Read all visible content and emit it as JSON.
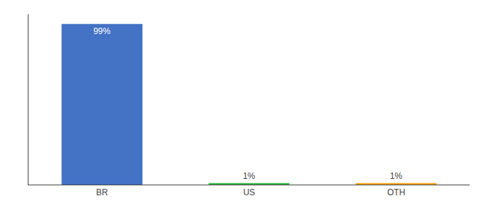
{
  "chart_data": {
    "type": "bar",
    "categories": [
      "BR",
      "US",
      "OTH"
    ],
    "values": [
      99,
      1,
      1
    ],
    "value_labels": [
      "99%",
      "1%",
      "1%"
    ],
    "colors": [
      "#4472c4",
      "#3dba4e",
      "#f5a623"
    ],
    "ylim": [
      0,
      105
    ],
    "data_labels": true,
    "tick_labels": "x",
    "grid": false
  }
}
